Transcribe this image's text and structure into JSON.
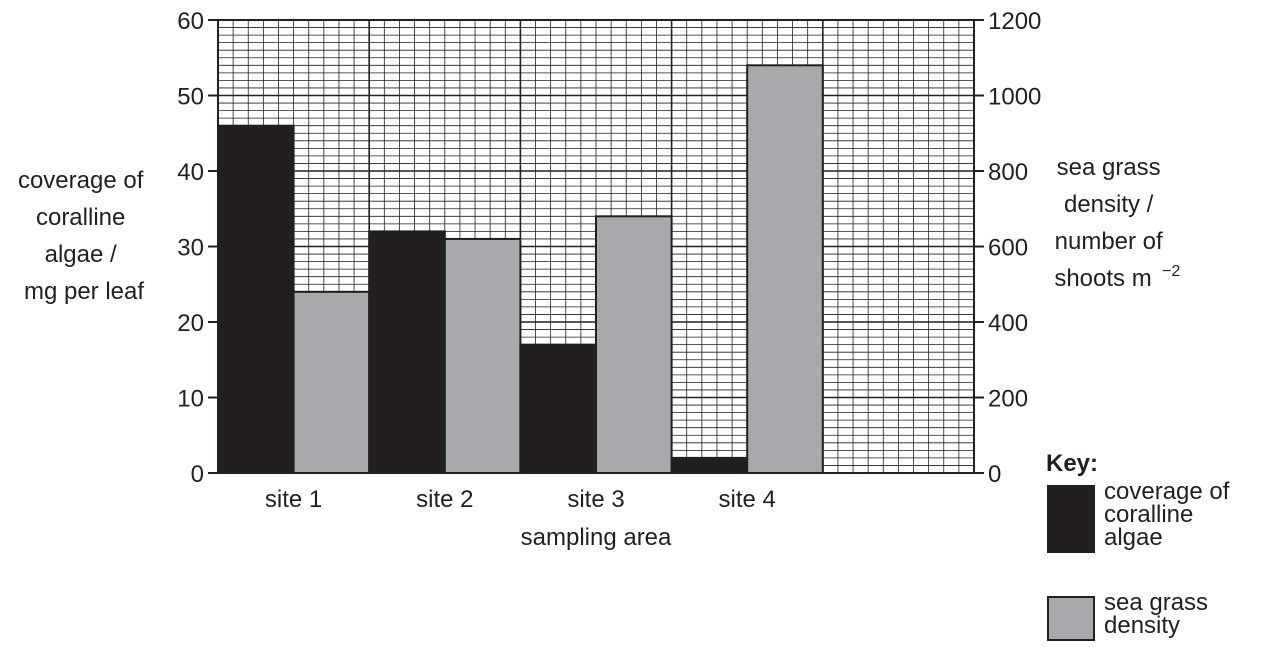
{
  "chart_data": {
    "type": "bar",
    "categories": [
      "site 1",
      "site 2",
      "site 3",
      "site 4",
      ""
    ],
    "series": [
      {
        "name": "coverage of coralline algae",
        "axis": "left",
        "color": "#231f20",
        "values": [
          46,
          32,
          17,
          2,
          null
        ]
      },
      {
        "name": "sea grass density",
        "axis": "right",
        "color": "#a7a9ac",
        "values": [
          480,
          620,
          680,
          1080,
          null
        ]
      }
    ],
    "xlabel": "sampling area",
    "ylabel_left": [
      "coverage of",
      "coralline",
      "algae /",
      "mg per leaf"
    ],
    "ylabel_right": [
      "sea grass",
      "density /",
      "number of",
      "shoots m"
    ],
    "ylabel_right_superscript": "−2",
    "ylim_left": [
      0,
      60
    ],
    "ylim_right": [
      0,
      1200
    ],
    "yticks_left": [
      0,
      10,
      20,
      30,
      40,
      50,
      60
    ],
    "yticks_right": [
      0,
      200,
      400,
      600,
      800,
      1000,
      1200
    ],
    "grid": true,
    "legend": {
      "title": "Key:",
      "position": "bottom-right",
      "entries": [
        {
          "lines": [
            "coverage of",
            "coralline",
            "algae"
          ],
          "color": "#231f20"
        },
        {
          "lines": [
            "sea grass",
            "density"
          ],
          "color": "#a7a9ac"
        }
      ]
    }
  }
}
